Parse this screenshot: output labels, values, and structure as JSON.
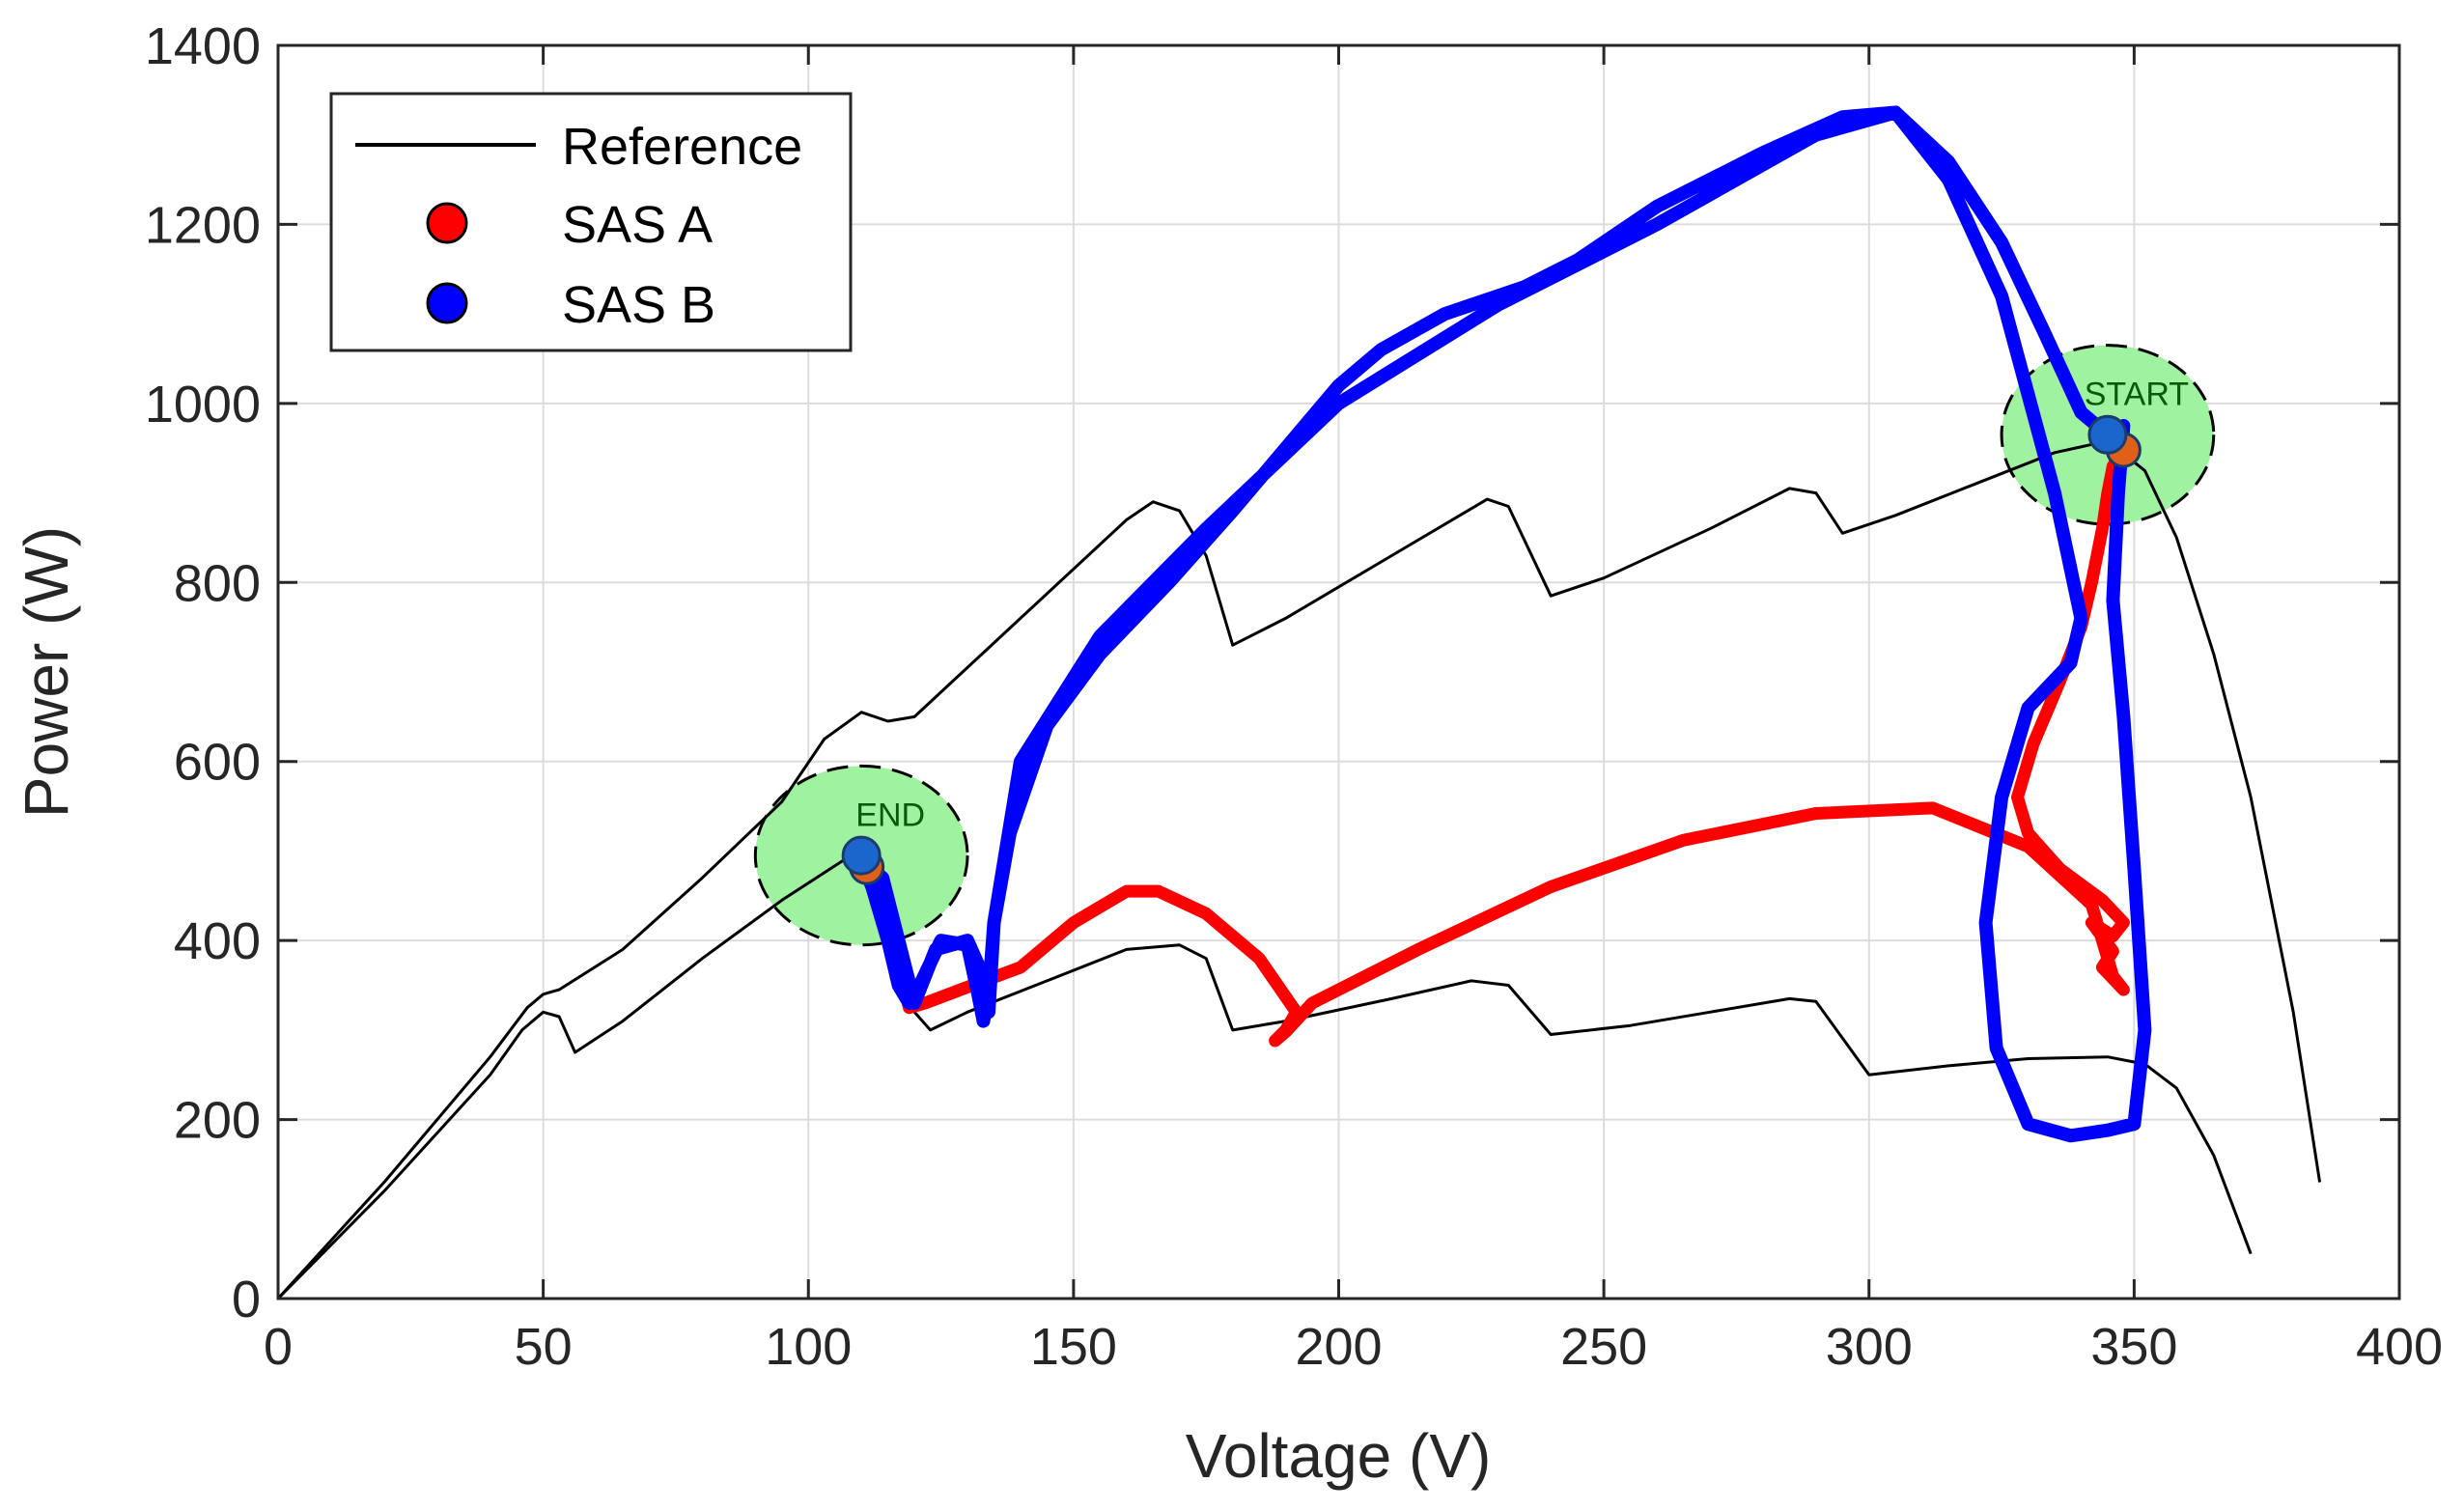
{
  "chart_data": {
    "type": "line",
    "title": "",
    "xlabel": "Voltage (V)",
    "ylabel": "Power (W)",
    "xlim": [
      0,
      400
    ],
    "ylim": [
      0,
      1400
    ],
    "xticks": [
      0,
      50,
      100,
      150,
      200,
      250,
      300,
      350,
      400
    ],
    "yticks": [
      0,
      200,
      400,
      600,
      800,
      1000,
      1200,
      1400
    ],
    "grid": true,
    "legend_position": "top-left",
    "legend": [
      "Reference",
      "SAS A",
      "SAS B"
    ],
    "colors": {
      "reference": "#000000",
      "sas_a": "#ff0000",
      "sas_b": "#0000ff",
      "annotation_fill": "#9ff29f",
      "annotation_text": "#0b5a0b"
    },
    "annotations": [
      {
        "label": "START",
        "voltage": 345,
        "power": 965,
        "radius_v": 20,
        "radius_p": 100
      },
      {
        "label": "END",
        "voltage": 110,
        "power": 495,
        "radius_v": 20,
        "radius_p": 100
      }
    ],
    "series": [
      {
        "name": "Reference",
        "kind": "reference",
        "curves": [
          [
            [
              0,
              0
            ],
            [
              10,
              60
            ],
            [
              20,
              120
            ],
            [
              30,
              185
            ],
            [
              40,
              250
            ],
            [
              46,
              300
            ],
            [
              50,
              320
            ],
            [
              53,
              315
            ],
            [
              56,
              275
            ],
            [
              65,
              310
            ],
            [
              80,
              380
            ],
            [
              95,
              445
            ],
            [
              108,
              495
            ],
            [
              112,
              480
            ],
            [
              120,
              320
            ],
            [
              123,
              300
            ],
            [
              130,
              320
            ],
            [
              145,
              355
            ],
            [
              160,
              390
            ],
            [
              170,
              395
            ],
            [
              175,
              380
            ],
            [
              180,
              300
            ],
            [
              190,
              310
            ],
            [
              210,
              335
            ],
            [
              225,
              355
            ],
            [
              232,
              350
            ],
            [
              240,
              295
            ],
            [
              255,
              305
            ],
            [
              270,
              320
            ],
            [
              285,
              335
            ],
            [
              290,
              332
            ],
            [
              300,
              250
            ],
            [
              315,
              260
            ],
            [
              330,
              268
            ],
            [
              345,
              270
            ],
            [
              352,
              262
            ],
            [
              358,
              235
            ],
            [
              365,
              160
            ],
            [
              372,
              50
            ]
          ],
          [
            [
              0,
              0
            ],
            [
              10,
              65
            ],
            [
              20,
              130
            ],
            [
              30,
              200
            ],
            [
              40,
              270
            ],
            [
              47,
              325
            ],
            [
              50,
              340
            ],
            [
              53,
              345
            ],
            [
              65,
              390
            ],
            [
              80,
              470
            ],
            [
              95,
              555
            ],
            [
              103,
              625
            ],
            [
              110,
              655
            ],
            [
              115,
              645
            ],
            [
              120,
              650
            ],
            [
              140,
              760
            ],
            [
              160,
              870
            ],
            [
              165,
              890
            ],
            [
              170,
              880
            ],
            [
              175,
              830
            ],
            [
              180,
              730
            ],
            [
              190,
              760
            ],
            [
              210,
              830
            ],
            [
              228,
              893
            ],
            [
              232,
              885
            ],
            [
              240,
              785
            ],
            [
              250,
              805
            ],
            [
              270,
              860
            ],
            [
              285,
              905
            ],
            [
              290,
              900
            ],
            [
              295,
              855
            ],
            [
              305,
              875
            ],
            [
              320,
              910
            ],
            [
              335,
              945
            ],
            [
              345,
              958
            ],
            [
              352,
              925
            ],
            [
              358,
              850
            ],
            [
              365,
              720
            ],
            [
              372,
              560
            ],
            [
              380,
              320
            ],
            [
              385,
              130
            ]
          ]
        ]
      },
      {
        "name": "SAS A",
        "kind": "sas_a",
        "points": [
          [
            348,
            948
          ],
          [
            346,
            930
          ],
          [
            345,
            900
          ],
          [
            344,
            860
          ],
          [
            342,
            800
          ],
          [
            340,
            750
          ],
          [
            336,
            690
          ],
          [
            331,
            620
          ],
          [
            328,
            560
          ],
          [
            330,
            520
          ],
          [
            336,
            480
          ],
          [
            344,
            445
          ],
          [
            348,
            420
          ],
          [
            346,
            405
          ],
          [
            342,
            420
          ],
          [
            346,
            388
          ],
          [
            344,
            370
          ],
          [
            348,
            345
          ],
          [
            346,
            360
          ],
          [
            342,
            440
          ],
          [
            330,
            505
          ],
          [
            312,
            548
          ],
          [
            290,
            542
          ],
          [
            265,
            512
          ],
          [
            240,
            460
          ],
          [
            215,
            390
          ],
          [
            195,
            330
          ],
          [
            190,
            298
          ],
          [
            188,
            288
          ],
          [
            190,
            300
          ],
          [
            192,
            320
          ],
          [
            185,
            380
          ],
          [
            175,
            430
          ],
          [
            166,
            455
          ],
          [
            160,
            455
          ],
          [
            150,
            420
          ],
          [
            140,
            370
          ],
          [
            130,
            348
          ],
          [
            122,
            330
          ],
          [
            119,
            325
          ],
          [
            118,
            350
          ],
          [
            116,
            410
          ],
          [
            113,
            465
          ],
          [
            111,
            482
          ]
        ]
      },
      {
        "name": "SAS B",
        "kind": "sas_b",
        "points": [
          [
            345,
            965
          ],
          [
            340,
            990
          ],
          [
            333,
            1080
          ],
          [
            325,
            1180
          ],
          [
            315,
            1270
          ],
          [
            305,
            1325
          ],
          [
            295,
            1320
          ],
          [
            280,
            1280
          ],
          [
            260,
            1220
          ],
          [
            245,
            1160
          ],
          [
            235,
            1130
          ],
          [
            220,
            1100
          ],
          [
            208,
            1060
          ],
          [
            200,
            1020
          ],
          [
            190,
            950
          ],
          [
            180,
            880
          ],
          [
            168,
            800
          ],
          [
            155,
            720
          ],
          [
            145,
            640
          ],
          [
            138,
            520
          ],
          [
            135,
            420
          ],
          [
            134,
            340
          ],
          [
            133,
            310
          ],
          [
            132,
            340
          ],
          [
            130,
            395
          ],
          [
            125,
            400
          ],
          [
            121,
            350
          ],
          [
            119,
            330
          ],
          [
            117,
            350
          ],
          [
            115,
            400
          ],
          [
            112,
            460
          ],
          [
            110,
            490
          ],
          [
            114,
            470
          ],
          [
            120,
            330
          ],
          [
            124,
            390
          ],
          [
            130,
            400
          ],
          [
            133,
            360
          ],
          [
            134,
            320
          ],
          [
            135,
            420
          ],
          [
            140,
            600
          ],
          [
            155,
            740
          ],
          [
            175,
            860
          ],
          [
            200,
            1000
          ],
          [
            230,
            1110
          ],
          [
            260,
            1200
          ],
          [
            290,
            1300
          ],
          [
            305,
            1325
          ],
          [
            315,
            1250
          ],
          [
            325,
            1120
          ],
          [
            335,
            900
          ],
          [
            340,
            760
          ],
          [
            338,
            710
          ],
          [
            330,
            660
          ],
          [
            325,
            560
          ],
          [
            322,
            420
          ],
          [
            324,
            280
          ],
          [
            330,
            195
          ],
          [
            338,
            182
          ],
          [
            345,
            188
          ],
          [
            350,
            195
          ],
          [
            352,
            300
          ],
          [
            350,
            480
          ],
          [
            348,
            650
          ],
          [
            346,
            780
          ],
          [
            347,
            900
          ],
          [
            348,
            975
          ]
        ]
      }
    ],
    "markers": [
      {
        "series": "SAS A",
        "voltage": 348,
        "power": 948
      },
      {
        "series": "SAS A",
        "voltage": 111,
        "power": 482
      },
      {
        "series": "SAS B",
        "voltage": 345,
        "power": 965
      },
      {
        "series": "SAS B",
        "voltage": 110,
        "power": 495
      }
    ]
  }
}
